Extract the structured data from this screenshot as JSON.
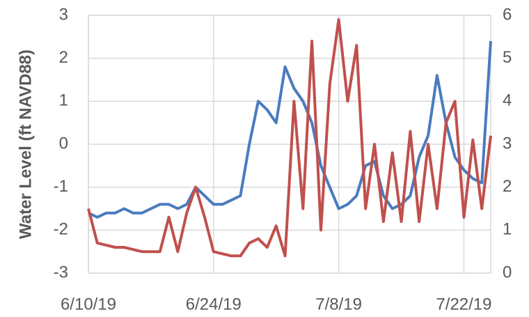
{
  "chart_data": {
    "type": "line",
    "y_label": "Water Level (ft NAVD88)",
    "x": [
      "6/10/19",
      "6/11/19",
      "6/12/19",
      "6/13/19",
      "6/14/19",
      "6/15/19",
      "6/16/19",
      "6/17/19",
      "6/18/19",
      "6/19/19",
      "6/20/19",
      "6/21/19",
      "6/22/19",
      "6/23/19",
      "6/24/19",
      "6/25/19",
      "6/26/19",
      "6/27/19",
      "6/28/19",
      "6/29/19",
      "6/30/19",
      "7/1/19",
      "7/2/19",
      "7/3/19",
      "7/4/19",
      "7/5/19",
      "7/6/19",
      "7/7/19",
      "7/8/19",
      "7/9/19",
      "7/10/19",
      "7/11/19",
      "7/12/19",
      "7/13/19",
      "7/14/19",
      "7/15/19",
      "7/16/19",
      "7/17/19",
      "7/18/19",
      "7/19/19",
      "7/20/19",
      "7/21/19",
      "7/22/19",
      "7/23/19",
      "7/24/19",
      "7/25/19"
    ],
    "series": [
      {
        "color": "#4a7bbf",
        "axis": "y",
        "values": [
          -1.6,
          -1.7,
          -1.6,
          -1.6,
          -1.5,
          -1.6,
          -1.6,
          -1.5,
          -1.4,
          -1.4,
          -1.5,
          -1.4,
          -1.0,
          -1.2,
          -1.4,
          -1.4,
          -1.3,
          -1.2,
          0.0,
          1.0,
          0.8,
          0.5,
          1.8,
          1.3,
          1.0,
          0.5,
          -0.5,
          -1.0,
          -1.5,
          -1.4,
          -1.2,
          -0.5,
          -0.4,
          -1.2,
          -1.5,
          -1.4,
          -1.2,
          -0.3,
          0.2,
          1.6,
          0.5,
          -0.3,
          -0.6,
          -0.8,
          -0.9,
          2.4
        ]
      },
      {
        "color": "#c0504d",
        "axis": "y2",
        "values": [
          1.5,
          0.7,
          0.65,
          0.6,
          0.6,
          0.55,
          0.5,
          0.5,
          0.5,
          1.3,
          0.5,
          1.4,
          2.0,
          1.3,
          0.5,
          0.45,
          0.4,
          0.4,
          0.7,
          0.8,
          0.6,
          1.1,
          0.4,
          4.0,
          1.5,
          5.4,
          1.0,
          4.4,
          5.9,
          4.0,
          5.3,
          1.5,
          3.0,
          1.2,
          2.8,
          1.2,
          3.3,
          1.2,
          3.0,
          1.5,
          3.5,
          4.0,
          1.3,
          3.1,
          1.5,
          3.2
        ]
      }
    ],
    "xlim": [
      "6/10/19",
      "7/25/19"
    ],
    "xticks": [
      "6/10/19",
      "6/24/19",
      "7/8/19",
      "7/22/19"
    ],
    "ylim": [
      -3,
      3
    ],
    "yticks": [
      -3,
      -2,
      -1,
      0,
      1,
      2,
      3
    ],
    "y2lim": [
      0,
      6
    ],
    "y2ticks": [
      0,
      1,
      2,
      3,
      4,
      5,
      6
    ],
    "grid": true
  }
}
